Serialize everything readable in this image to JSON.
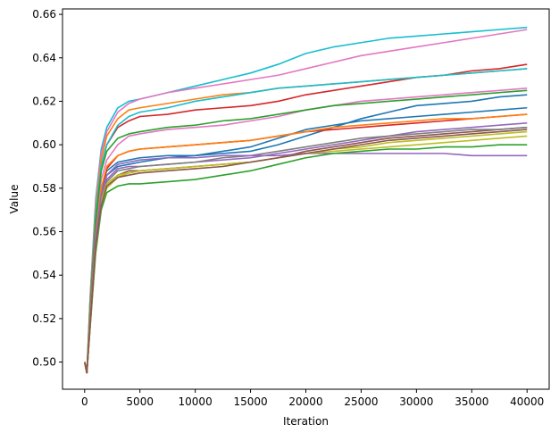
{
  "chart_data": {
    "type": "line",
    "title": "",
    "xlabel": "Iteration",
    "ylabel": "Value",
    "xlim": [
      -2000,
      42000
    ],
    "ylim": [
      0.4875,
      0.6625
    ],
    "xticks": [
      0,
      5000,
      10000,
      15000,
      20000,
      25000,
      30000,
      35000,
      40000
    ],
    "xtick_labels": [
      "0",
      "5000",
      "10000",
      "15000",
      "20000",
      "25000",
      "30000",
      "35000",
      "40000"
    ],
    "yticks": [
      0.5,
      0.52,
      0.54,
      0.56,
      0.58,
      0.6,
      0.62,
      0.64,
      0.66
    ],
    "ytick_labels": [
      "0.50",
      "0.52",
      "0.54",
      "0.56",
      "0.58",
      "0.60",
      "0.62",
      "0.64",
      "0.66"
    ],
    "grid": false,
    "legend": "none",
    "x": [
      0,
      200,
      500,
      1000,
      1500,
      2000,
      3000,
      4000,
      5000,
      7500,
      10000,
      12500,
      15000,
      17500,
      20000,
      22500,
      25000,
      27500,
      30000,
      32500,
      35000,
      37500,
      40000
    ],
    "series": [
      {
        "color": "#17becf",
        "values": [
          0.5,
          0.495,
          0.53,
          0.575,
          0.598,
          0.608,
          0.617,
          0.62,
          0.621,
          0.624,
          0.627,
          0.63,
          0.633,
          0.637,
          0.642,
          0.645,
          0.647,
          0.649,
          0.65,
          0.651,
          0.652,
          0.653,
          0.654
        ]
      },
      {
        "color": "#e377c2",
        "values": [
          0.5,
          0.495,
          0.53,
          0.573,
          0.596,
          0.606,
          0.615,
          0.619,
          0.621,
          0.624,
          0.626,
          0.628,
          0.63,
          0.632,
          0.635,
          0.638,
          0.641,
          0.643,
          0.645,
          0.647,
          0.649,
          0.651,
          0.653
        ]
      },
      {
        "color": "#d62728",
        "values": [
          0.5,
          0.495,
          0.525,
          0.568,
          0.59,
          0.6,
          0.608,
          0.611,
          0.613,
          0.614,
          0.616,
          0.617,
          0.618,
          0.62,
          0.623,
          0.625,
          0.627,
          0.629,
          0.631,
          0.632,
          0.634,
          0.635,
          0.637
        ]
      },
      {
        "color": "#ff7f0e",
        "values": [
          0.5,
          0.495,
          0.528,
          0.57,
          0.593,
          0.604,
          0.612,
          0.616,
          0.617,
          0.619,
          0.621,
          0.623,
          0.624,
          0.626,
          0.627,
          0.628,
          0.629,
          0.63,
          0.631,
          0.632,
          0.633,
          0.634,
          0.635
        ]
      },
      {
        "color": "#17becf",
        "values": [
          0.5,
          0.495,
          0.526,
          0.568,
          0.59,
          0.6,
          0.609,
          0.613,
          0.615,
          0.617,
          0.62,
          0.622,
          0.624,
          0.626,
          0.627,
          0.628,
          0.629,
          0.63,
          0.631,
          0.632,
          0.633,
          0.634,
          0.635
        ]
      },
      {
        "color": "#e377c2",
        "values": [
          0.5,
          0.495,
          0.522,
          0.562,
          0.584,
          0.593,
          0.6,
          0.604,
          0.605,
          0.607,
          0.608,
          0.609,
          0.611,
          0.613,
          0.616,
          0.618,
          0.62,
          0.621,
          0.622,
          0.623,
          0.624,
          0.625,
          0.626
        ]
      },
      {
        "color": "#2ca02c",
        "values": [
          0.5,
          0.495,
          0.524,
          0.565,
          0.588,
          0.597,
          0.603,
          0.605,
          0.606,
          0.608,
          0.609,
          0.611,
          0.612,
          0.614,
          0.616,
          0.618,
          0.619,
          0.62,
          0.621,
          0.622,
          0.623,
          0.624,
          0.625
        ]
      },
      {
        "color": "#1f77b4",
        "values": [
          0.5,
          0.495,
          0.522,
          0.56,
          0.58,
          0.588,
          0.592,
          0.593,
          0.594,
          0.595,
          0.595,
          0.596,
          0.597,
          0.6,
          0.604,
          0.608,
          0.612,
          0.615,
          0.618,
          0.619,
          0.62,
          0.622,
          0.623
        ]
      },
      {
        "color": "#d62728",
        "values": [
          0.5,
          0.495,
          0.52,
          0.558,
          0.578,
          0.589,
          0.595,
          0.597,
          0.598,
          0.599,
          0.6,
          0.601,
          0.602,
          0.604,
          0.606,
          0.607,
          0.608,
          0.609,
          0.61,
          0.611,
          0.612,
          0.613,
          0.614
        ]
      },
      {
        "color": "#1f77b4",
        "values": [
          0.5,
          0.495,
          0.52,
          0.558,
          0.578,
          0.586,
          0.59,
          0.591,
          0.592,
          0.594,
          0.595,
          0.597,
          0.599,
          0.603,
          0.607,
          0.609,
          0.611,
          0.612,
          0.613,
          0.614,
          0.615,
          0.616,
          0.617
        ]
      },
      {
        "color": "#ff7f0e",
        "values": [
          0.5,
          0.495,
          0.521,
          0.559,
          0.58,
          0.59,
          0.595,
          0.597,
          0.598,
          0.599,
          0.6,
          0.601,
          0.602,
          0.604,
          0.606,
          0.608,
          0.609,
          0.61,
          0.611,
          0.612,
          0.612,
          0.613,
          0.614
        ]
      },
      {
        "color": "#9467bd",
        "values": [
          0.5,
          0.495,
          0.518,
          0.555,
          0.575,
          0.584,
          0.589,
          0.59,
          0.59,
          0.591,
          0.592,
          0.593,
          0.594,
          0.596,
          0.598,
          0.6,
          0.602,
          0.604,
          0.606,
          0.607,
          0.608,
          0.609,
          0.61
        ]
      },
      {
        "color": "#8c564b",
        "values": [
          0.5,
          0.495,
          0.517,
          0.554,
          0.574,
          0.582,
          0.586,
          0.588,
          0.588,
          0.589,
          0.59,
          0.591,
          0.592,
          0.594,
          0.597,
          0.599,
          0.601,
          0.603,
          0.604,
          0.605,
          0.606,
          0.607,
          0.608
        ]
      },
      {
        "color": "#7f7f7f",
        "values": [
          0.5,
          0.495,
          0.518,
          0.555,
          0.575,
          0.583,
          0.588,
          0.589,
          0.59,
          0.591,
          0.592,
          0.594,
          0.595,
          0.597,
          0.599,
          0.601,
          0.603,
          0.604,
          0.605,
          0.606,
          0.607,
          0.607,
          0.608
        ]
      },
      {
        "color": "#bcbd22",
        "values": [
          0.5,
          0.495,
          0.518,
          0.554,
          0.574,
          0.582,
          0.586,
          0.587,
          0.588,
          0.589,
          0.59,
          0.591,
          0.592,
          0.594,
          0.596,
          0.598,
          0.599,
          0.601,
          0.602,
          0.603,
          0.604,
          0.605,
          0.606
        ]
      },
      {
        "color": "#9467bd",
        "values": [
          0.5,
          0.495,
          0.519,
          0.557,
          0.577,
          0.586,
          0.591,
          0.592,
          0.593,
          0.594,
          0.594,
          0.595,
          0.595,
          0.595,
          0.596,
          0.596,
          0.596,
          0.596,
          0.596,
          0.596,
          0.595,
          0.595,
          0.595
        ]
      },
      {
        "color": "#2ca02c",
        "values": [
          0.5,
          0.495,
          0.516,
          0.55,
          0.57,
          0.578,
          0.581,
          0.582,
          0.582,
          0.583,
          0.584,
          0.586,
          0.588,
          0.591,
          0.594,
          0.596,
          0.597,
          0.598,
          0.598,
          0.599,
          0.599,
          0.6,
          0.6
        ]
      },
      {
        "color": "#bcbd22",
        "values": [
          0.5,
          0.495,
          0.517,
          0.552,
          0.572,
          0.58,
          0.585,
          0.587,
          0.588,
          0.589,
          0.59,
          0.591,
          0.592,
          0.594,
          0.596,
          0.597,
          0.598,
          0.599,
          0.6,
          0.601,
          0.602,
          0.603,
          0.604
        ]
      },
      {
        "color": "#8c564b",
        "values": [
          0.5,
          0.495,
          0.517,
          0.553,
          0.572,
          0.581,
          0.585,
          0.586,
          0.587,
          0.588,
          0.589,
          0.59,
          0.592,
          0.594,
          0.596,
          0.598,
          0.6,
          0.602,
          0.603,
          0.604,
          0.605,
          0.606,
          0.607
        ]
      }
    ]
  }
}
